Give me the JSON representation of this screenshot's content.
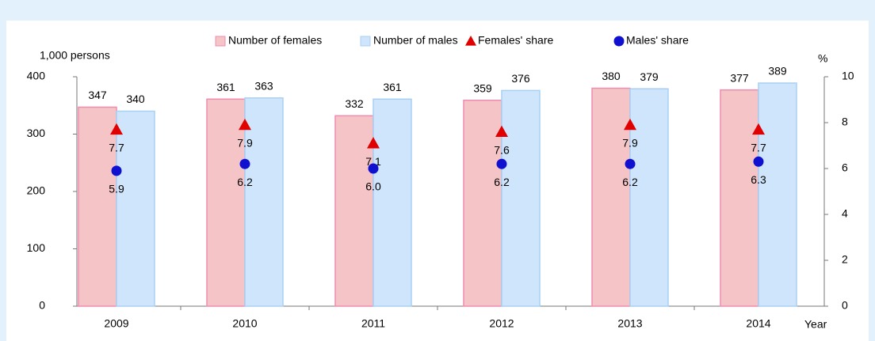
{
  "chart_data": {
    "type": "bar",
    "categories": [
      "2009",
      "2010",
      "2011",
      "2012",
      "2013",
      "2014"
    ],
    "ylabel": "1,000 persons",
    "y2label": "%",
    "xlabel": "Year",
    "ylim": [
      0,
      400
    ],
    "yticks": [
      0,
      100,
      200,
      300,
      400
    ],
    "y2lim": [
      0,
      10
    ],
    "y2ticks": [
      0,
      2,
      4,
      6,
      8,
      10
    ],
    "series": [
      {
        "name": "Number of females",
        "color": "#f4c4c6",
        "values": [
          347,
          361,
          332,
          359,
          380,
          377
        ]
      },
      {
        "name": "Number of males",
        "color": "#cfe5fb",
        "values": [
          340,
          363,
          361,
          376,
          379,
          389
        ]
      },
      {
        "name": "Females' share",
        "color": "#e00000",
        "axis": "y2",
        "marker": "triangle",
        "values": [
          7.7,
          7.9,
          7.1,
          7.6,
          7.9,
          7.7
        ]
      },
      {
        "name": "Males' share",
        "color": "#1010d0",
        "axis": "y2",
        "marker": "circle",
        "values": [
          5.9,
          6.2,
          6.0,
          6.2,
          6.2,
          6.3
        ],
        "value_labels": [
          "5.9",
          "6.2",
          "6.0",
          "6.2",
          "6.2",
          "6.3"
        ]
      }
    ]
  }
}
